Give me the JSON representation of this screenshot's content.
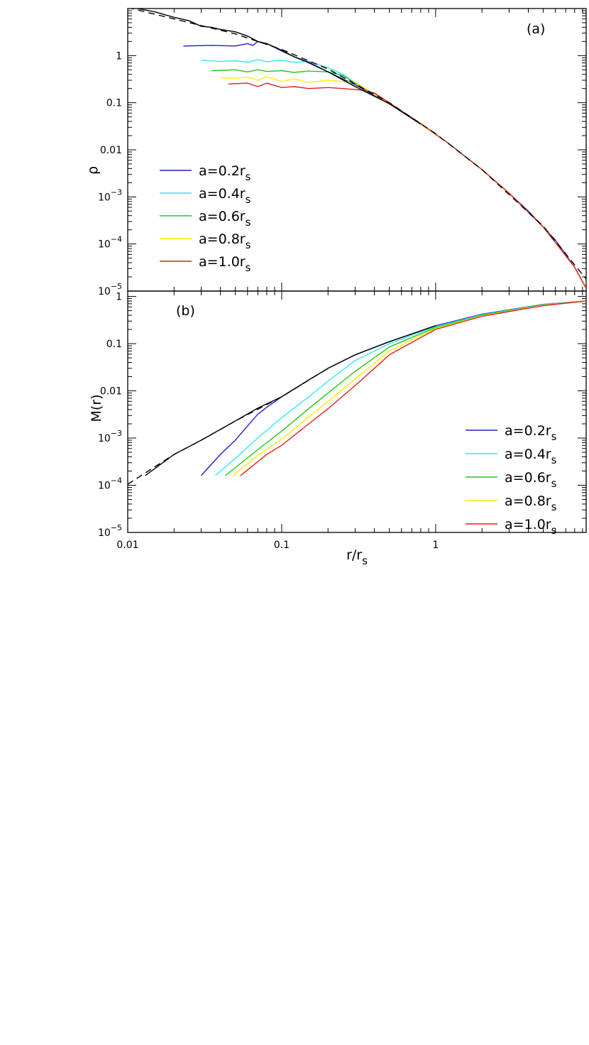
{
  "chart_data": [
    {
      "type": "line",
      "panel_label": "(a)",
      "xscale": "log",
      "yscale": "log",
      "xlim": [
        0.01,
        9.5
      ],
      "ylim": [
        1e-05,
        10
      ],
      "ylabel": "ρ",
      "xlabel": "",
      "yticks": [
        {
          "v": 10,
          "label": ""
        },
        {
          "v": 1,
          "label": "1"
        },
        {
          "v": 0.1,
          "label": "0.1"
        },
        {
          "v": 0.01,
          "label": "0.01"
        },
        {
          "v": 0.001,
          "label": "10",
          "exp": "−3"
        },
        {
          "v": 0.0001,
          "label": "10",
          "exp": "−4"
        },
        {
          "v": 1e-05,
          "label": "10",
          "exp": "−5"
        }
      ],
      "legend_position": "center-left",
      "series": [
        {
          "name": "a=0.2r",
          "sub": "s",
          "color": "#2020c8",
          "style": "solid",
          "x": [
            0.023,
            0.035,
            0.05,
            0.06,
            0.065,
            0.07,
            0.075,
            0.08,
            0.09,
            0.1,
            0.12,
            0.15,
            0.2,
            0.3,
            0.5,
            0.8,
            1.2,
            2,
            3,
            4,
            5,
            6,
            7,
            8,
            9.5
          ],
          "y": [
            1.6,
            1.65,
            1.6,
            1.8,
            1.65,
            2.0,
            1.85,
            1.8,
            1.5,
            1.25,
            0.95,
            0.7,
            0.45,
            0.24,
            0.095,
            0.035,
            0.014,
            0.0038,
            0.0012,
            0.0005,
            0.00023,
            0.00012,
            6e-05,
            3.2e-05,
            1.15e-05
          ]
        },
        {
          "name": "a=0.4r",
          "sub": "s",
          "color": "#30e8f0",
          "style": "solid",
          "x": [
            0.03,
            0.04,
            0.05,
            0.06,
            0.07,
            0.08,
            0.1,
            0.12,
            0.15,
            0.2,
            0.25,
            0.3,
            0.5,
            0.8,
            1.2,
            2,
            3,
            5,
            8,
            9.5
          ],
          "y": [
            0.8,
            0.75,
            0.78,
            0.72,
            0.82,
            0.74,
            0.8,
            0.72,
            0.75,
            0.55,
            0.4,
            0.26,
            0.095,
            0.035,
            0.014,
            0.0038,
            0.0012,
            0.00023,
            3.2e-05,
            1.15e-05
          ]
        },
        {
          "name": "a=0.6r",
          "sub": "s",
          "color": "#20c820",
          "style": "solid",
          "x": [
            0.035,
            0.05,
            0.06,
            0.07,
            0.08,
            0.1,
            0.12,
            0.15,
            0.2,
            0.25,
            0.3,
            0.4,
            0.5,
            0.8,
            1.2,
            2,
            3,
            5,
            8,
            9.5
          ],
          "y": [
            0.48,
            0.5,
            0.45,
            0.5,
            0.46,
            0.48,
            0.44,
            0.47,
            0.45,
            0.38,
            0.26,
            0.15,
            0.095,
            0.035,
            0.014,
            0.0038,
            0.0012,
            0.00023,
            3.2e-05,
            1.15e-05
          ]
        },
        {
          "name": "a=0.8r",
          "sub": "s",
          "color": "#f8f000",
          "style": "solid",
          "x": [
            0.04,
            0.05,
            0.06,
            0.07,
            0.08,
            0.1,
            0.12,
            0.15,
            0.2,
            0.25,
            0.3,
            0.35,
            0.4,
            0.5,
            0.8,
            1.2,
            2,
            3,
            5,
            8,
            9.5
          ],
          "y": [
            0.34,
            0.33,
            0.35,
            0.3,
            0.36,
            0.28,
            0.32,
            0.27,
            0.3,
            0.28,
            0.27,
            0.2,
            0.15,
            0.095,
            0.035,
            0.014,
            0.0038,
            0.0012,
            0.00023,
            3.2e-05,
            1.15e-05
          ]
        },
        {
          "name": "a=1.0r",
          "sub": "s",
          "color": "#e02020",
          "style": "solid",
          "x": [
            0.045,
            0.06,
            0.07,
            0.08,
            0.1,
            0.12,
            0.15,
            0.2,
            0.25,
            0.3,
            0.35,
            0.4,
            0.5,
            0.8,
            1.2,
            2,
            3,
            5,
            8,
            9.5
          ],
          "y": [
            0.25,
            0.26,
            0.22,
            0.26,
            0.21,
            0.22,
            0.2,
            0.21,
            0.2,
            0.19,
            0.18,
            0.16,
            0.1,
            0.036,
            0.014,
            0.0038,
            0.0012,
            0.00023,
            3.2e-05,
            1.15e-05
          ]
        },
        {
          "name": "",
          "color": "#000000",
          "style": "solid",
          "x": [
            0.01,
            0.015,
            0.02,
            0.025,
            0.03,
            0.035,
            0.04,
            0.05,
            0.06,
            0.07,
            0.08,
            0.1,
            0.12,
            0.15,
            0.2,
            0.3,
            0.5,
            0.8
          ],
          "y": [
            11,
            8.5,
            6.5,
            5.5,
            4.2,
            4.0,
            3.6,
            3.2,
            2.6,
            2.0,
            1.8,
            1.3,
            0.95,
            0.72,
            0.45,
            0.22,
            0.095,
            0.035
          ]
        },
        {
          "name": "",
          "color": "#000000",
          "style": "dashed",
          "x": [
            0.01,
            0.02,
            0.05,
            0.1,
            0.2,
            0.5,
            1,
            2,
            5,
            9.5
          ],
          "y": [
            10.5,
            6.0,
            2.9,
            1.35,
            0.52,
            0.1,
            0.022,
            0.0038,
            0.00024,
            1.8e-05
          ]
        }
      ]
    },
    {
      "type": "line",
      "panel_label": "(b)",
      "xscale": "log",
      "yscale": "log",
      "xlim": [
        0.01,
        9.5
      ],
      "ylim": [
        1e-05,
        1.3
      ],
      "ylabel": "M(r)",
      "xlabel": "r/r",
      "xlabel_sub": "s",
      "xticks": [
        {
          "v": 0.01,
          "label": "0.01"
        },
        {
          "v": 0.1,
          "label": "0.1"
        },
        {
          "v": 1,
          "label": "1"
        }
      ],
      "yticks": [
        {
          "v": 1,
          "label": "1"
        },
        {
          "v": 0.1,
          "label": "0.1"
        },
        {
          "v": 0.01,
          "label": "0.01"
        },
        {
          "v": 0.001,
          "label": "10",
          "exp": "−3"
        },
        {
          "v": 0.0001,
          "label": "10",
          "exp": "−4"
        },
        {
          "v": 1e-05,
          "label": "10",
          "exp": "−5"
        }
      ],
      "legend_position": "right",
      "series": [
        {
          "name": "a=0.2r",
          "sub": "s",
          "color": "#2020c8",
          "style": "solid",
          "x": [
            0.03,
            0.04,
            0.05,
            0.06,
            0.07,
            0.08,
            0.1,
            0.15,
            0.2,
            0.3,
            0.5,
            1,
            2,
            5,
            9.5
          ],
          "y": [
            0.00016,
            0.00045,
            0.0009,
            0.0018,
            0.0032,
            0.0045,
            0.0075,
            0.017,
            0.03,
            0.058,
            0.11,
            0.24,
            0.42,
            0.68,
            0.8
          ]
        },
        {
          "name": "a=0.4r",
          "sub": "s",
          "color": "#30e8f0",
          "style": "solid",
          "x": [
            0.037,
            0.05,
            0.07,
            0.1,
            0.15,
            0.2,
            0.3,
            0.5,
            1,
            2,
            5,
            9.5
          ],
          "y": [
            0.00016,
            0.00037,
            0.001,
            0.0027,
            0.0075,
            0.016,
            0.044,
            0.1,
            0.23,
            0.41,
            0.67,
            0.8
          ]
        },
        {
          "name": "a=0.6r",
          "sub": "s",
          "color": "#20c820",
          "style": "solid",
          "x": [
            0.043,
            0.06,
            0.08,
            0.1,
            0.15,
            0.2,
            0.3,
            0.5,
            1,
            2,
            5,
            9.5
          ],
          "y": [
            0.00016,
            0.00038,
            0.0008,
            0.0014,
            0.0042,
            0.009,
            0.026,
            0.085,
            0.22,
            0.4,
            0.66,
            0.8
          ]
        },
        {
          "name": "a=0.8r",
          "sub": "s",
          "color": "#f8f000",
          "style": "solid",
          "x": [
            0.048,
            0.07,
            0.1,
            0.15,
            0.2,
            0.3,
            0.5,
            1,
            2,
            5,
            9.5
          ],
          "y": [
            0.00016,
            0.00043,
            0.00095,
            0.0028,
            0.006,
            0.018,
            0.07,
            0.21,
            0.39,
            0.65,
            0.8
          ]
        },
        {
          "name": "a=1.0r",
          "sub": "s",
          "color": "#e02020",
          "style": "solid",
          "x": [
            0.054,
            0.08,
            0.1,
            0.15,
            0.2,
            0.3,
            0.4,
            0.5,
            1,
            2,
            5,
            9.5
          ],
          "y": [
            0.00016,
            0.00045,
            0.0007,
            0.002,
            0.0042,
            0.013,
            0.03,
            0.058,
            0.2,
            0.38,
            0.64,
            0.8
          ]
        },
        {
          "name": "",
          "color": "#000000",
          "style": "solid",
          "x": [
            0.013,
            0.02,
            0.03,
            0.05,
            0.07,
            0.1,
            0.15,
            0.2,
            0.3,
            0.5,
            1
          ],
          "y": [
            0.00016,
            0.00045,
            0.0009,
            0.0023,
            0.0043,
            0.0075,
            0.017,
            0.03,
            0.058,
            0.11,
            0.24
          ]
        },
        {
          "name": "",
          "color": "#000000",
          "style": "dashed",
          "x": [
            0.01,
            0.02,
            0.03,
            0.05,
            0.1,
            0.2
          ],
          "y": [
            0.000105,
            0.00045,
            0.0009,
            0.0023,
            0.0075,
            0.03
          ]
        }
      ]
    }
  ]
}
